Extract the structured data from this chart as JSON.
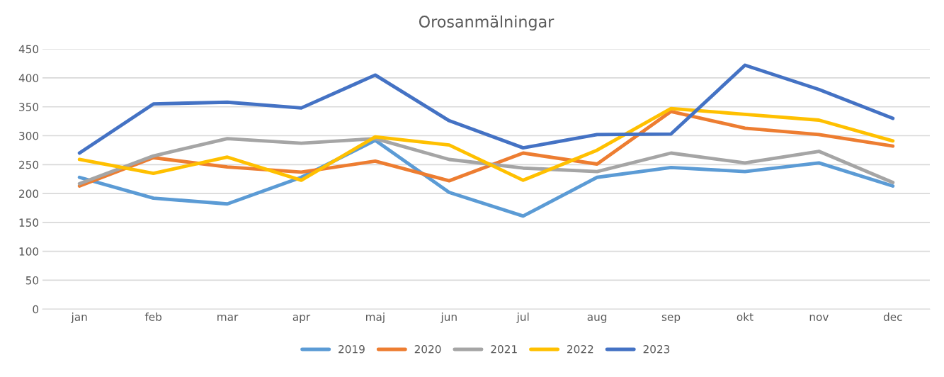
{
  "chart_data": {
    "type": "line",
    "title": "Orosanmälningar",
    "categories": [
      "jan",
      "feb",
      "mar",
      "apr",
      "maj",
      "jun",
      "jul",
      "aug",
      "sep",
      "okt",
      "nov",
      "dec"
    ],
    "series": [
      {
        "name": "2019",
        "color": "#5b9bd5",
        "values": [
          228,
          192,
          182,
          228,
          292,
          202,
          161,
          228,
          245,
          238,
          253,
          213
        ]
      },
      {
        "name": "2020",
        "color": "#ed7d31",
        "values": [
          213,
          262,
          246,
          237,
          256,
          222,
          270,
          251,
          342,
          313,
          302,
          282
        ]
      },
      {
        "name": "2021",
        "color": "#a5a5a5",
        "values": [
          217,
          265,
          295,
          287,
          295,
          259,
          244,
          238,
          270,
          253,
          273,
          219
        ]
      },
      {
        "name": "2022",
        "color": "#ffc000",
        "values": [
          259,
          235,
          263,
          223,
          298,
          284,
          223,
          275,
          347,
          337,
          327,
          291
        ]
      },
      {
        "name": "2023",
        "color": "#4472c4",
        "values": [
          270,
          355,
          358,
          348,
          405,
          326,
          279,
          302,
          303,
          422,
          380,
          330
        ]
      }
    ],
    "ylim": [
      0,
      450
    ],
    "yticks": [
      0,
      50,
      100,
      150,
      200,
      250,
      300,
      350,
      400,
      450
    ],
    "grid": "y",
    "legend": "bottom",
    "marker": "none",
    "line_style": "solid"
  }
}
